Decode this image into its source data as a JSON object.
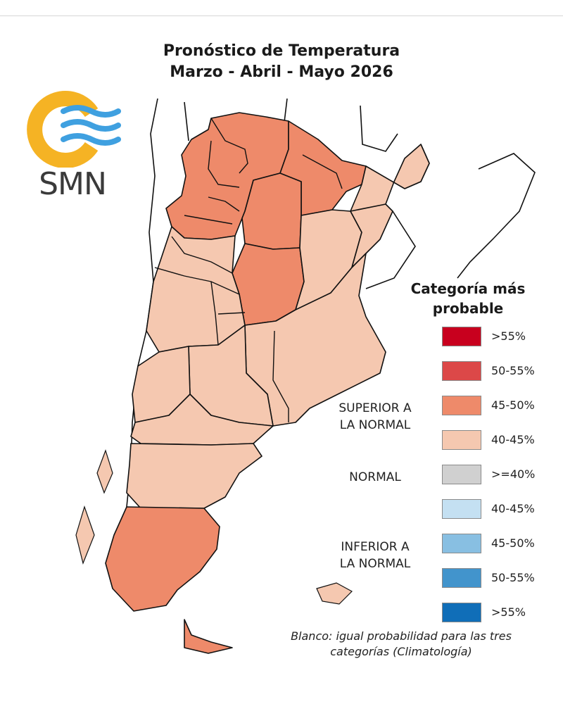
{
  "title": {
    "line1": "Pronóstico de Temperatura",
    "line2": "Marzo - Abril - Mayo 2026"
  },
  "logo": {
    "text": "SMN",
    "sun_color": "#f5b324",
    "stripe_color": "#3fa0e0"
  },
  "legend": {
    "title_line1": "Categoría más",
    "title_line2": "probable",
    "items": [
      {
        "label": ">55%",
        "color": "#c8001e"
      },
      {
        "label": "50-55%",
        "color": "#dc4848"
      },
      {
        "label": "45-50%",
        "color": "#ee8a6a"
      },
      {
        "label": "40-45%",
        "color": "#f5c8b0"
      },
      {
        "label": ">=40%",
        "color": "#d0d0d0"
      },
      {
        "label": "40-45%",
        "color": "#c4e0f2"
      },
      {
        "label": "45-50%",
        "color": "#88bfe2"
      },
      {
        "label": "50-55%",
        "color": "#4294cc"
      },
      {
        "label": ">55%",
        "color": "#106eb8"
      }
    ],
    "groups": {
      "superior": [
        "SUPERIOR A",
        "LA NORMAL"
      ],
      "normal": "NORMAL",
      "inferior": [
        "INFERIOR A",
        "LA NORMAL"
      ]
    }
  },
  "note": {
    "line1": "Blanco: igual probabilidad para las tres",
    "line2": "categorías (Climatología)"
  },
  "regions": [
    {
      "name": "north",
      "category": "45-50%"
    },
    {
      "name": "cuyo",
      "category": "40-45%"
    },
    {
      "name": "patagonia-norte",
      "category": "40-45%"
    },
    {
      "name": "patagonia-sur",
      "category": "45-50%"
    },
    {
      "name": "litoral",
      "category": "40-45%"
    },
    {
      "name": "buenos-aires",
      "category": "40-45%"
    }
  ]
}
